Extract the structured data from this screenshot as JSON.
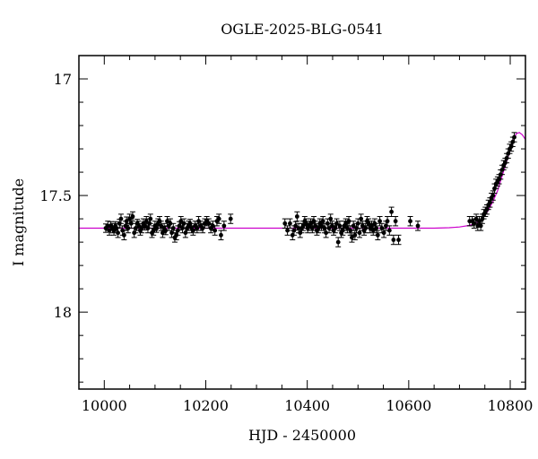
{
  "chart_data": {
    "type": "scatter",
    "title": "OGLE-2025-BLG-0541",
    "xlabel": "HJD - 2450000",
    "ylabel": "I magnitude",
    "xlim": [
      9950,
      10830
    ],
    "ylim": [
      18.33,
      16.9
    ],
    "y_inverted": true,
    "x_ticks": [
      10000,
      10200,
      10400,
      10600,
      10800
    ],
    "y_ticks": [
      17,
      17.5,
      18
    ],
    "x_tick_labels": [
      "10000",
      "10200",
      "10400",
      "10600",
      "10800"
    ],
    "y_tick_labels": [
      "17",
      "17.5",
      "18"
    ],
    "grid": false,
    "series": [
      {
        "role": "observations",
        "color": "#000000",
        "points": [
          [
            10003,
            17.64,
            0.018
          ],
          [
            10007,
            17.63,
            0.02
          ],
          [
            10010,
            17.65,
            0.02
          ],
          [
            10013,
            17.63,
            0.018
          ],
          [
            10016,
            17.64,
            0.02
          ],
          [
            10019,
            17.65,
            0.02
          ],
          [
            10022,
            17.63,
            0.018
          ],
          [
            10024,
            17.64,
            0.02
          ],
          [
            10027,
            17.66,
            0.02
          ],
          [
            10030,
            17.62,
            0.018
          ],
          [
            10033,
            17.6,
            0.02
          ],
          [
            10036,
            17.65,
            0.02
          ],
          [
            10039,
            17.67,
            0.02
          ],
          [
            10042,
            17.63,
            0.02
          ],
          [
            10044,
            17.61,
            0.018
          ],
          [
            10047,
            17.64,
            0.02
          ],
          [
            10050,
            17.6,
            0.02
          ],
          [
            10053,
            17.62,
            0.02
          ],
          [
            10056,
            17.59,
            0.02
          ],
          [
            10059,
            17.66,
            0.02
          ],
          [
            10062,
            17.64,
            0.02
          ],
          [
            10065,
            17.62,
            0.018
          ],
          [
            10068,
            17.63,
            0.02
          ],
          [
            10071,
            17.65,
            0.02
          ],
          [
            10074,
            17.64,
            0.02
          ],
          [
            10077,
            17.62,
            0.02
          ],
          [
            10080,
            17.63,
            0.018
          ],
          [
            10083,
            17.61,
            0.02
          ],
          [
            10086,
            17.64,
            0.02
          ],
          [
            10089,
            17.62,
            0.02
          ],
          [
            10091,
            17.6,
            0.02
          ],
          [
            10094,
            17.66,
            0.02
          ],
          [
            10097,
            17.65,
            0.02
          ],
          [
            10100,
            17.63,
            0.02
          ],
          [
            10103,
            17.64,
            0.018
          ],
          [
            10106,
            17.62,
            0.02
          ],
          [
            10109,
            17.61,
            0.02
          ],
          [
            10112,
            17.63,
            0.02
          ],
          [
            10115,
            17.66,
            0.02
          ],
          [
            10118,
            17.64,
            0.02
          ],
          [
            10121,
            17.65,
            0.018
          ],
          [
            10124,
            17.61,
            0.02
          ],
          [
            10127,
            17.63,
            0.02
          ],
          [
            10130,
            17.62,
            0.02
          ],
          [
            10133,
            17.66,
            0.02
          ],
          [
            10136,
            17.64,
            0.02
          ],
          [
            10139,
            17.68,
            0.02
          ],
          [
            10142,
            17.67,
            0.02
          ],
          [
            10145,
            17.65,
            0.02
          ],
          [
            10148,
            17.63,
            0.018
          ],
          [
            10151,
            17.61,
            0.02
          ],
          [
            10154,
            17.64,
            0.02
          ],
          [
            10157,
            17.62,
            0.02
          ],
          [
            10160,
            17.66,
            0.02
          ],
          [
            10163,
            17.64,
            0.02
          ],
          [
            10166,
            17.63,
            0.02
          ],
          [
            10169,
            17.62,
            0.018
          ],
          [
            10172,
            17.64,
            0.02
          ],
          [
            10175,
            17.65,
            0.02
          ],
          [
            10179,
            17.63,
            0.02
          ],
          [
            10183,
            17.64,
            0.02
          ],
          [
            10186,
            17.61,
            0.02
          ],
          [
            10190,
            17.63,
            0.02
          ],
          [
            10194,
            17.64,
            0.02
          ],
          [
            10198,
            17.62,
            0.02
          ],
          [
            10202,
            17.61,
            0.02
          ],
          [
            10206,
            17.62,
            0.02
          ],
          [
            10210,
            17.64,
            0.02
          ],
          [
            10214,
            17.63,
            0.02
          ],
          [
            10218,
            17.65,
            0.02
          ],
          [
            10222,
            17.61,
            0.02
          ],
          [
            10226,
            17.6,
            0.02
          ],
          [
            10230,
            17.67,
            0.02
          ],
          [
            10236,
            17.63,
            0.02
          ],
          [
            10249,
            17.6,
            0.02
          ],
          [
            10356,
            17.62,
            0.02
          ],
          [
            10361,
            17.65,
            0.02
          ],
          [
            10366,
            17.62,
            0.02
          ],
          [
            10371,
            17.67,
            0.02
          ],
          [
            10374,
            17.65,
            0.02
          ],
          [
            10377,
            17.63,
            0.018
          ],
          [
            10380,
            17.59,
            0.02
          ],
          [
            10383,
            17.64,
            0.02
          ],
          [
            10386,
            17.66,
            0.02
          ],
          [
            10389,
            17.64,
            0.02
          ],
          [
            10392,
            17.63,
            0.02
          ],
          [
            10395,
            17.61,
            0.02
          ],
          [
            10398,
            17.62,
            0.02
          ],
          [
            10401,
            17.64,
            0.02
          ],
          [
            10404,
            17.63,
            0.02
          ],
          [
            10407,
            17.62,
            0.02
          ],
          [
            10410,
            17.64,
            0.02
          ],
          [
            10413,
            17.61,
            0.02
          ],
          [
            10416,
            17.63,
            0.02
          ],
          [
            10419,
            17.65,
            0.02
          ],
          [
            10422,
            17.64,
            0.02
          ],
          [
            10425,
            17.62,
            0.02
          ],
          [
            10428,
            17.63,
            0.02
          ],
          [
            10431,
            17.61,
            0.02
          ],
          [
            10434,
            17.64,
            0.02
          ],
          [
            10437,
            17.66,
            0.02
          ],
          [
            10440,
            17.62,
            0.02
          ],
          [
            10443,
            17.64,
            0.02
          ],
          [
            10446,
            17.6,
            0.02
          ],
          [
            10449,
            17.63,
            0.02
          ],
          [
            10452,
            17.65,
            0.02
          ],
          [
            10455,
            17.64,
            0.02
          ],
          [
            10458,
            17.62,
            0.02
          ],
          [
            10461,
            17.7,
            0.02
          ],
          [
            10464,
            17.63,
            0.02
          ],
          [
            10467,
            17.66,
            0.02
          ],
          [
            10470,
            17.65,
            0.02
          ],
          [
            10473,
            17.63,
            0.02
          ],
          [
            10476,
            17.62,
            0.02
          ],
          [
            10479,
            17.64,
            0.02
          ],
          [
            10482,
            17.61,
            0.02
          ],
          [
            10485,
            17.65,
            0.02
          ],
          [
            10488,
            17.68,
            0.02
          ],
          [
            10491,
            17.63,
            0.02
          ],
          [
            10494,
            17.67,
            0.02
          ],
          [
            10497,
            17.64,
            0.02
          ],
          [
            10500,
            17.62,
            0.02
          ],
          [
            10503,
            17.66,
            0.02
          ],
          [
            10506,
            17.6,
            0.02
          ],
          [
            10509,
            17.63,
            0.02
          ],
          [
            10512,
            17.65,
            0.02
          ],
          [
            10515,
            17.64,
            0.02
          ],
          [
            10518,
            17.61,
            0.02
          ],
          [
            10521,
            17.62,
            0.02
          ],
          [
            10524,
            17.64,
            0.02
          ],
          [
            10527,
            17.63,
            0.02
          ],
          [
            10530,
            17.65,
            0.02
          ],
          [
            10533,
            17.62,
            0.02
          ],
          [
            10536,
            17.64,
            0.02
          ],
          [
            10539,
            17.67,
            0.02
          ],
          [
            10543,
            17.61,
            0.02
          ],
          [
            10547,
            17.64,
            0.02
          ],
          [
            10551,
            17.66,
            0.02
          ],
          [
            10555,
            17.63,
            0.02
          ],
          [
            10558,
            17.61,
            0.02
          ],
          [
            10562,
            17.65,
            0.02
          ],
          [
            10566,
            17.57,
            0.02
          ],
          [
            10570,
            17.69,
            0.02
          ],
          [
            10574,
            17.61,
            0.02
          ],
          [
            10580,
            17.69,
            0.02
          ],
          [
            10603,
            17.61,
            0.02
          ],
          [
            10618,
            17.63,
            0.02
          ],
          [
            10720,
            17.61,
            0.02
          ],
          [
            10725,
            17.61,
            0.02
          ],
          [
            10729,
            17.62,
            0.02
          ],
          [
            10733,
            17.6,
            0.02
          ],
          [
            10736,
            17.63,
            0.02
          ],
          [
            10739,
            17.61,
            0.02
          ],
          [
            10742,
            17.63,
            0.02
          ],
          [
            10745,
            17.6,
            0.02
          ],
          [
            10748,
            17.58,
            0.02
          ],
          [
            10751,
            17.57,
            0.02
          ],
          [
            10754,
            17.56,
            0.02
          ],
          [
            10757,
            17.54,
            0.02
          ],
          [
            10760,
            17.53,
            0.02
          ],
          [
            10763,
            17.51,
            0.02
          ],
          [
            10766,
            17.5,
            0.02
          ],
          [
            10769,
            17.47,
            0.02
          ],
          [
            10772,
            17.45,
            0.02
          ],
          [
            10775,
            17.44,
            0.02
          ],
          [
            10778,
            17.43,
            0.02
          ],
          [
            10781,
            17.41,
            0.02
          ],
          [
            10784,
            17.39,
            0.02
          ],
          [
            10787,
            17.37,
            0.02
          ],
          [
            10790,
            17.36,
            0.02
          ],
          [
            10793,
            17.34,
            0.02
          ],
          [
            10796,
            17.32,
            0.02
          ],
          [
            10799,
            17.3,
            0.02
          ],
          [
            10802,
            17.29,
            0.02
          ],
          [
            10805,
            17.27,
            0.02
          ],
          [
            10808,
            17.25,
            0.02
          ]
        ]
      },
      {
        "role": "model",
        "color": "#cc00cc",
        "points": [
          [
            9950,
            17.64
          ],
          [
            10650,
            17.64
          ],
          [
            10680,
            17.638
          ],
          [
            10700,
            17.635
          ],
          [
            10720,
            17.628
          ],
          [
            10735,
            17.615
          ],
          [
            10745,
            17.6
          ],
          [
            10755,
            17.57
          ],
          [
            10765,
            17.53
          ],
          [
            10775,
            17.48
          ],
          [
            10785,
            17.41
          ],
          [
            10795,
            17.34
          ],
          [
            10805,
            17.27
          ],
          [
            10812,
            17.235
          ],
          [
            10818,
            17.23
          ],
          [
            10824,
            17.24
          ],
          [
            10830,
            17.26
          ]
        ]
      }
    ]
  }
}
